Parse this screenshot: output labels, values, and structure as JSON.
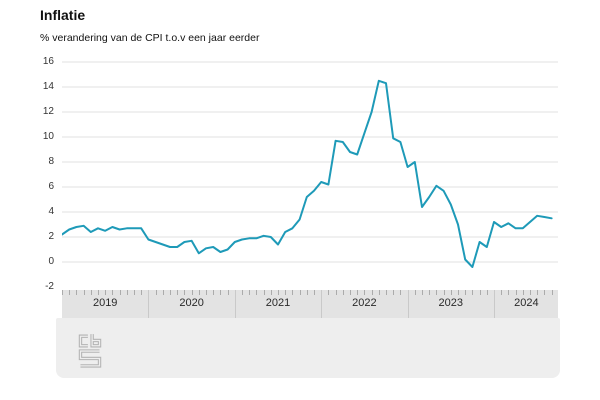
{
  "header": {
    "title": "Inflatie",
    "subtitle": "% verandering van de CPI t.o.v een jaar eerder"
  },
  "chart_data": {
    "type": "line",
    "title": "Inflatie",
    "subtitle": "% verandering van de CPI t.o.v een jaar eerder",
    "unit": "%",
    "ylabel": "% verandering van de CPI t.o.v een jaar eerder",
    "xlabel": "",
    "ylim": [
      -2,
      16
    ],
    "y_ticks": [
      16,
      14,
      12,
      10,
      8,
      6,
      4,
      2,
      0,
      -2
    ],
    "grid": true,
    "legend_position": "none",
    "x_years": [
      {
        "label": "2019",
        "months": 12
      },
      {
        "label": "2020",
        "months": 12
      },
      {
        "label": "2021",
        "months": 12
      },
      {
        "label": "2022",
        "months": 12
      },
      {
        "label": "2023",
        "months": 12
      },
      {
        "label": "2024",
        "months": 9
      }
    ],
    "series": [
      {
        "name": "Inflatie (CPI)",
        "color": "#1e9ab8",
        "values": [
          2.2,
          2.6,
          2.8,
          2.9,
          2.4,
          2.7,
          2.5,
          2.8,
          2.6,
          2.7,
          2.7,
          2.7,
          1.8,
          1.6,
          1.4,
          1.2,
          1.2,
          1.6,
          1.7,
          0.7,
          1.1,
          1.2,
          0.8,
          1.0,
          1.6,
          1.8,
          1.9,
          1.9,
          2.1,
          2.0,
          1.4,
          2.4,
          2.7,
          3.4,
          5.2,
          5.7,
          6.4,
          6.2,
          9.7,
          9.6,
          8.8,
          8.6,
          10.3,
          12.0,
          14.5,
          14.3,
          9.9,
          9.6,
          7.6,
          8.0,
          4.4,
          5.2,
          6.1,
          5.7,
          4.6,
          3.0,
          0.2,
          -0.4,
          1.6,
          1.2,
          3.2,
          2.8,
          3.1,
          2.7,
          2.7,
          3.2,
          3.7,
          3.6,
          3.5
        ]
      }
    ]
  },
  "footer": {
    "logo": "cbs-logo"
  },
  "colors": {
    "line": "#1e9ab8",
    "grid": "#e2e2e2",
    "axis_band": "#e3e3e3",
    "footer_bg": "#eeeeee",
    "month_tick": "#ababab",
    "year_separator": "#c9c9c9",
    "logo_gray": "#b3b3b3",
    "text": "#111111"
  }
}
